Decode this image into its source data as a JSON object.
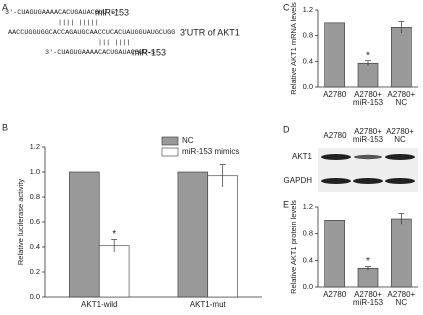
{
  "panel_labels": [
    "A",
    "B",
    "C",
    "D",
    "E"
  ],
  "panel_a": {
    "lines": [
      {
        "sequence": "3'-CUAGUGAAAACACUGAUACGUU-5'",
        "label": "miR-153"
      },
      {
        "sequence": "||||  |||||"
      },
      {
        "sequence": "AACCUGGUGGCACCAGAUGCAACCUCACUAUGGUAUGCUGG",
        "label": "3'UTR of AKT1"
      },
      {
        "sequence": "|||   ||||"
      },
      {
        "sequence": "3'-CUAGUGAAAACACUGAUACGUU-5'",
        "label": "miR-153"
      }
    ]
  },
  "panel_d": {
    "columns": [
      "A2780",
      "A2780+ miR-153",
      "A2780+ NC"
    ],
    "rows": [
      "AKT1",
      "GAPDH"
    ]
  },
  "chart_data": [
    {
      "type": "bar",
      "ylabel": "Relative luciferase activity",
      "categories": [
        "AKT1-wild",
        "AKT1-mut"
      ],
      "series": [
        {
          "name": "NC",
          "color": "#999999",
          "values": [
            1.0,
            1.0
          ]
        },
        {
          "name": "miR-153 mimics",
          "color": "#ffffff",
          "values": [
            0.41,
            0.97
          ],
          "errors": [
            0.05,
            0.09
          ],
          "significance": [
            "*",
            null
          ]
        }
      ],
      "ylim": [
        0,
        1.2
      ],
      "yticks": [
        {
          "value": 0,
          "label": "0.0"
        },
        0.2,
        0.4,
        0.6,
        0.8,
        {
          "value": 1,
          "label": "1.0"
        },
        1.2
      ],
      "legend": "upper right"
    },
    {
      "type": "bar",
      "ylabel": "Relative AKT1 mRNA levels",
      "categories": [
        "A2780",
        "A2780+ miR-153",
        "A2780+ NC"
      ],
      "values": [
        1.0,
        0.37,
        0.93
      ],
      "errors": [
        null,
        0.04,
        0.09
      ],
      "significance": [
        null,
        "*",
        null
      ],
      "color": "#999999",
      "ylim": [
        0,
        1.2
      ],
      "yticks": [
        {
          "value": 0,
          "label": "0.0"
        },
        0.4,
        0.8,
        1.2
      ]
    },
    {
      "type": "bar",
      "ylabel": "Relative AKT1 protein levels",
      "categories": [
        "A2780",
        "A2780+ miR-153",
        "A2780+ NC"
      ],
      "values": [
        1.0,
        0.28,
        1.02
      ],
      "errors": [
        null,
        0.03,
        0.08
      ],
      "significance": [
        null,
        "*",
        null
      ],
      "color": "#999999",
      "ylim": [
        0,
        1.2
      ],
      "yticks": [
        {
          "value": 0,
          "label": "0.0"
        },
        0.4,
        0.8,
        1.2
      ]
    }
  ]
}
